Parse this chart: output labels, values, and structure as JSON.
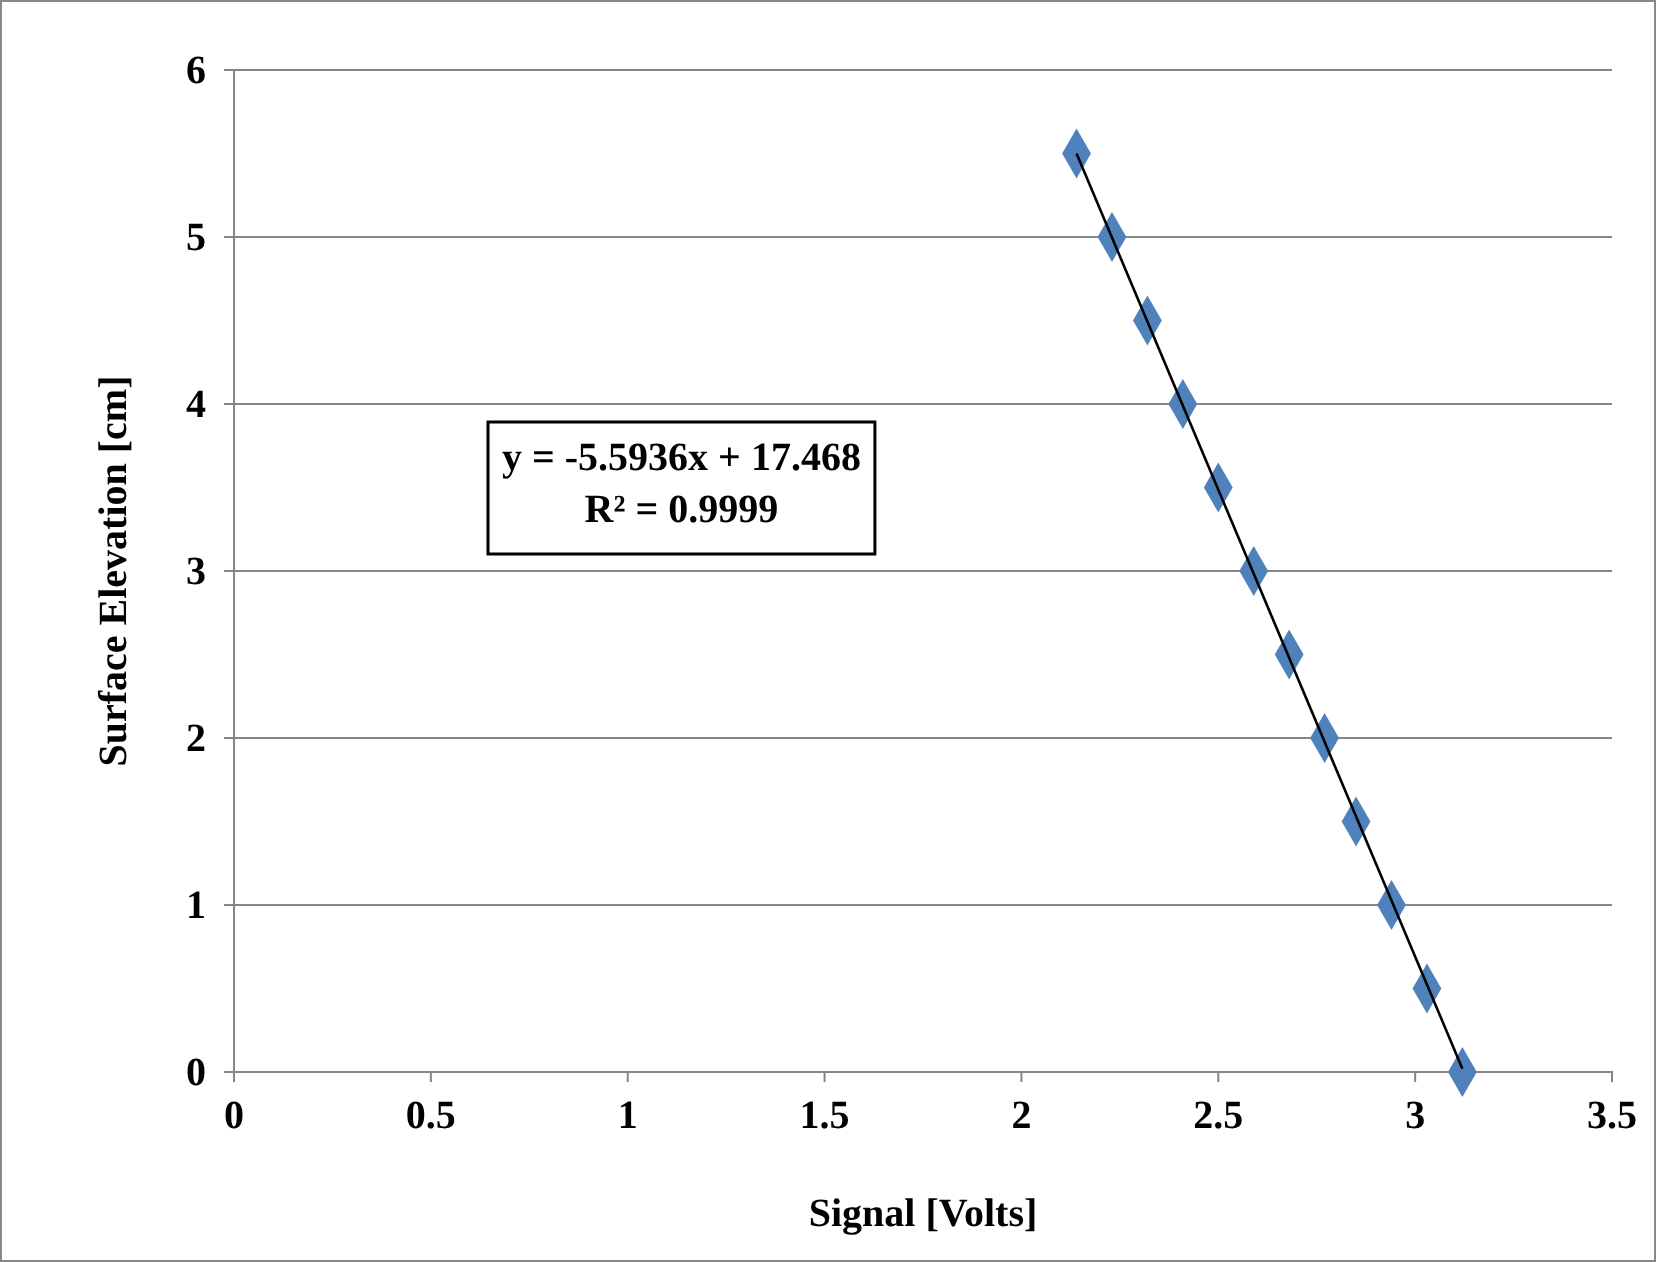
{
  "chart_data": {
    "type": "scatter",
    "xlabel": "Signal [Volts]",
    "ylabel": "Surface Elevation [cm]",
    "x": [
      3.12,
      3.03,
      2.94,
      2.85,
      2.77,
      2.68,
      2.59,
      2.5,
      2.41,
      2.32,
      2.23,
      2.14
    ],
    "series": [
      {
        "color": "#4f81bd",
        "values": [
          0,
          0.5,
          1,
          1.5,
          2,
          2.5,
          3,
          3.5,
          4,
          4.5,
          5,
          5.5
        ],
        "marker": "diamond"
      },
      {
        "type": "line",
        "color": "#000000",
        "x": [
          2.14,
          3.12
        ],
        "values": [
          5.5,
          0.02
        ],
        "marker": "none",
        "line_style": "solid"
      }
    ],
    "annotations": [
      "y = -5.5936x + 17.468",
      "R² = 0.9999"
    ],
    "xlim": [
      0,
      3.5
    ],
    "xticks": [
      0,
      0.5,
      1,
      1.5,
      2,
      2.5,
      3,
      3.5
    ],
    "ylim": [
      0,
      6
    ],
    "yticks": [
      0,
      1,
      2,
      3,
      4,
      5,
      6
    ],
    "grid": "y"
  }
}
